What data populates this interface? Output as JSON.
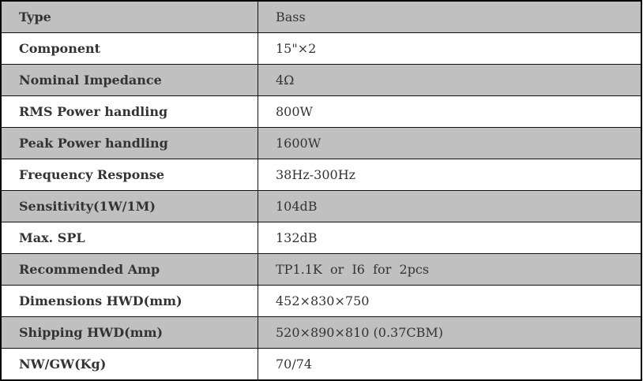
{
  "colors": {
    "shaded_row": "#c0c0c0",
    "text": "#333333",
    "border": "#000000"
  },
  "rows": [
    {
      "label": "Type",
      "value": "Bass"
    },
    {
      "label": "Component",
      "value": "15\"×2"
    },
    {
      "label": "Nominal Impedance",
      "value": "4Ω"
    },
    {
      "label": "RMS Power handling",
      "value": "800W"
    },
    {
      "label": "Peak Power handling",
      "value": "1600W"
    },
    {
      "label": "Frequency Response",
      "value": "38Hz-300Hz"
    },
    {
      "label": "Sensitivity(1W/1M)",
      "value": "104dB"
    },
    {
      "label": "Max. SPL",
      "value": "132dB"
    },
    {
      "label": "Recommended Amp",
      "value": "TP1.1K  or  I6  for  2pcs"
    },
    {
      "label": "Dimensions HWD(mm)",
      "value": "452×830×750"
    },
    {
      "label": "Shipping HWD(mm)",
      "value": "520×890×810 (0.37CBM)"
    },
    {
      "label": "NW/GW(Kg)",
      "value": "70/74"
    }
  ]
}
